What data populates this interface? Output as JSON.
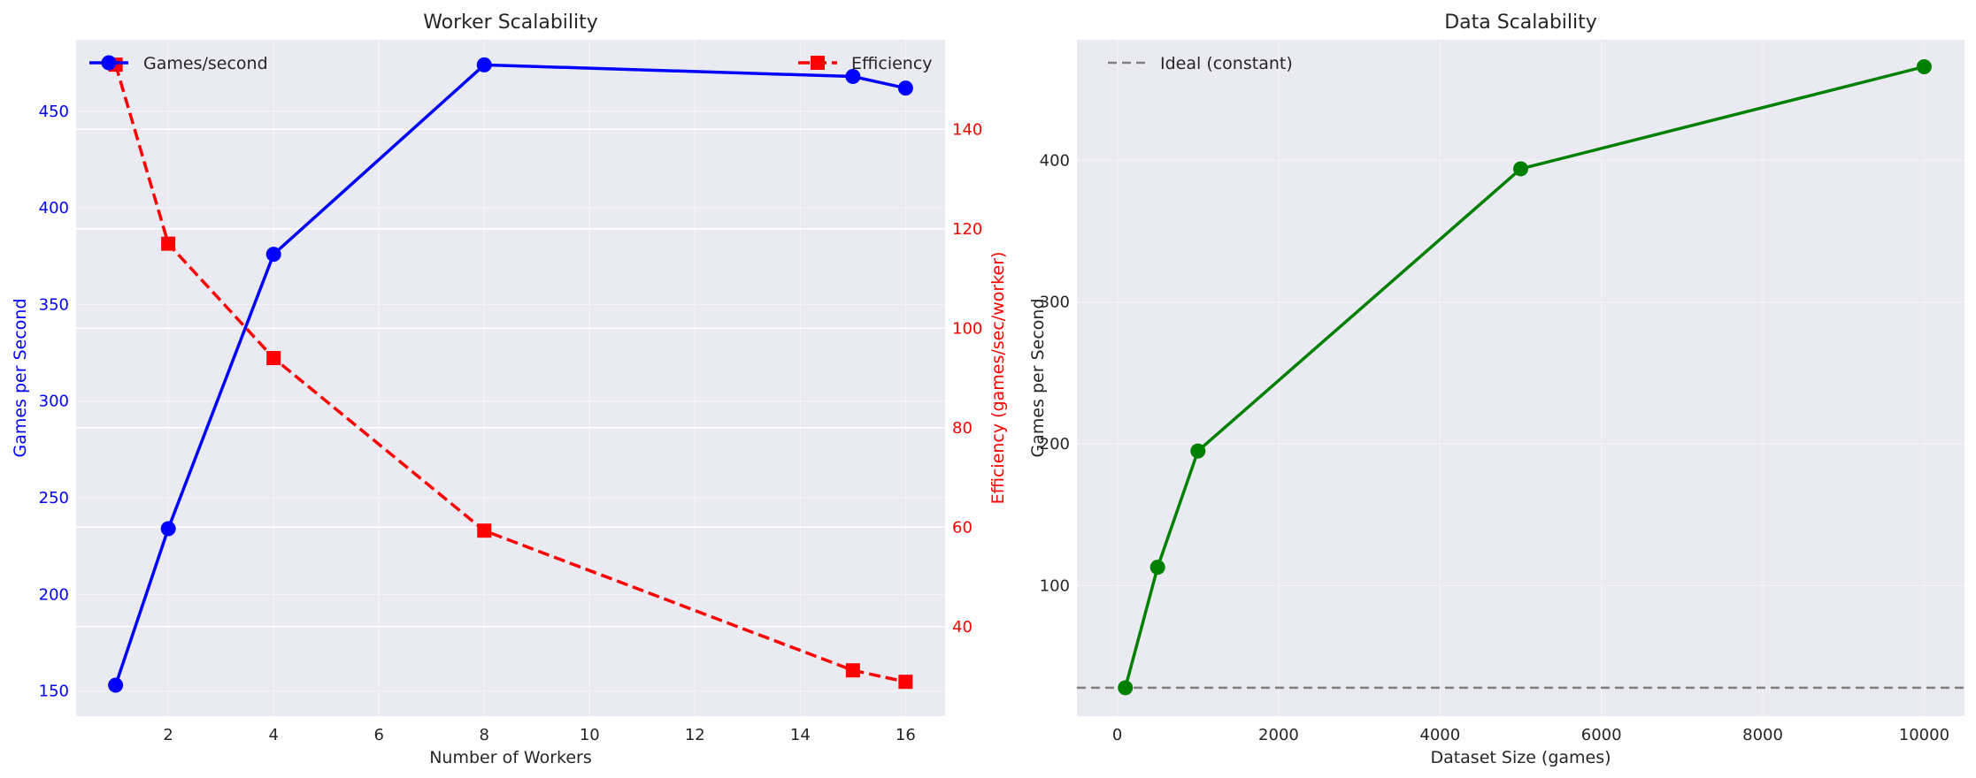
{
  "chart_data": [
    {
      "type": "line",
      "title": "Worker Scalability",
      "xlabel": "Number of Workers",
      "ylabel_left": "Games per Second",
      "ylabel_right": "Efficiency (games/sec/worker)",
      "xlim": [
        0.25,
        16.75
      ],
      "ylim_left": [
        137,
        487
      ],
      "ylim_right": [
        22,
        158
      ],
      "x_ticks": [
        2,
        4,
        6,
        8,
        10,
        12,
        14,
        16
      ],
      "y_ticks_left": [
        150,
        200,
        250,
        300,
        350,
        400,
        450
      ],
      "y_ticks_right": [
        40,
        60,
        80,
        100,
        120,
        140
      ],
      "left_color": "#0000ff",
      "right_color": "#ff0000",
      "grid": true,
      "series": [
        {
          "name": "Games/second",
          "axis": "left",
          "color": "#0000ff",
          "marker": "circle",
          "linestyle": "solid",
          "x": [
            1,
            2,
            4,
            8,
            15,
            16
          ],
          "values": [
            153,
            234,
            376,
            474,
            468,
            462
          ]
        },
        {
          "name": "Efficiency",
          "axis": "right",
          "color": "#ff0000",
          "marker": "square",
          "linestyle": "dashed",
          "x": [
            1,
            2,
            4,
            8,
            15,
            16
          ],
          "values": [
            153,
            117,
            94,
            59.3,
            31.2,
            28.9
          ]
        }
      ],
      "legend": [
        {
          "label": "Games/second",
          "placement": "top-left"
        },
        {
          "label": "Efficiency",
          "placement": "top-right"
        }
      ]
    },
    {
      "type": "line",
      "title": "Data Scalability",
      "xlabel": "Dataset Size (games)",
      "ylabel": "Games per Second",
      "xlim": [
        -500,
        10500
      ],
      "ylim": [
        8,
        485
      ],
      "x_ticks": [
        0,
        2000,
        4000,
        6000,
        8000,
        10000
      ],
      "y_ticks": [
        100,
        200,
        300,
        400
      ],
      "grid": true,
      "series": [
        {
          "name": "",
          "color": "#008000",
          "marker": "circle",
          "linestyle": "solid",
          "x": [
            100,
            500,
            1000,
            5000,
            10000
          ],
          "values": [
            28,
            113,
            195,
            394,
            466
          ]
        }
      ],
      "reference_line": {
        "label": "Ideal (constant)",
        "y": 28,
        "color": "#808080",
        "linestyle": "dashed"
      },
      "legend": [
        {
          "label": "Ideal (constant)",
          "placement": "top-left"
        }
      ]
    }
  ]
}
